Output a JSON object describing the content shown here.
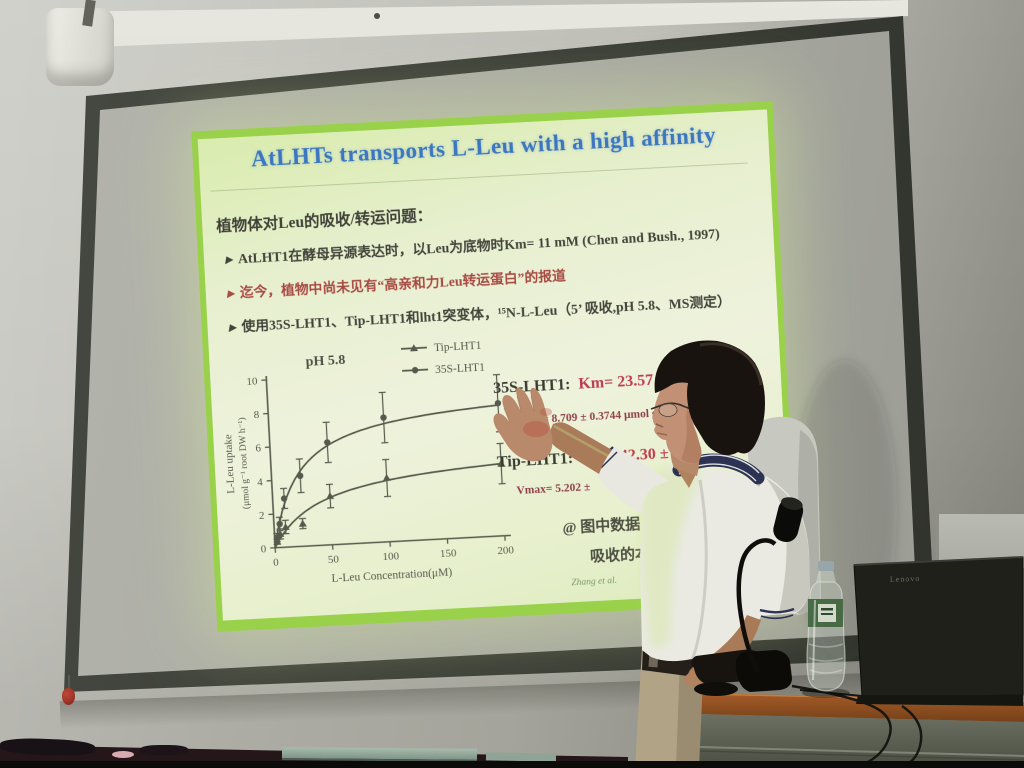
{
  "room": {
    "laptop_brand": "Lenovo"
  },
  "slide": {
    "title": "AtLHTs transports L-Leu with a high affinity",
    "intro": "植物体对Leu的吸收/转运问题：",
    "bullet_marker": "▸",
    "bullets": [
      {
        "text": "AtLHT1在酵母异源表达时，以Leu为底物时Km= 11 mM (Chen and Bush., 1997)",
        "tone": "dark"
      },
      {
        "text": "迄今，植物中尚未见有“高亲和力Leu转运蛋白”的报道",
        "tone": "red"
      },
      {
        "text": "使用35S-LHT1、Tip-LHT1和lht1突变体，¹⁵N-L-Leu（5’ 吸收,pH 5.8、MS测定）",
        "tone": "dark"
      }
    ],
    "results": {
      "r1_name": "35S-LHT1:",
      "r1_km": "Km= 23.57 ±",
      "r1_vmax": "Vmax= 8.709 ± 0.3744 μmol g⁻¹ root DW h⁻¹",
      "r2_name": "Tip-LHT1:",
      "r2_km": "Km= 42.30 ± 1",
      "r2_vmax": "Vmax= 5.202 ±"
    },
    "note_line1": "@ 图中数据",
    "note_line2": "吸收的本",
    "citation": "Zhang et al."
  },
  "chart_data": {
    "type": "line",
    "title": "pH 5.8",
    "xlabel": "L-Leu Concentration(μM)",
    "ylabel": "L-Leu uptake",
    "ylabel_sub": "(μmol g⁻¹ root DW h⁻¹)",
    "xlim": [
      0,
      200
    ],
    "ylim": [
      0,
      10
    ],
    "xticks": [
      0,
      50,
      100,
      150,
      200
    ],
    "yticks": [
      0,
      2,
      4,
      6,
      8,
      10
    ],
    "grid": false,
    "legend_position": "top-right",
    "series": [
      {
        "name": "Tip-LHT1",
        "marker": "triangle",
        "x": [
          2,
          5,
          10,
          25,
          50,
          100,
          200
        ],
        "y": [
          0.35,
          0.8,
          1.2,
          1.35,
          2.9,
          3.8,
          4.3
        ],
        "err": [
          0.15,
          0.3,
          0.4,
          0.3,
          0.7,
          1.1,
          1.2
        ],
        "fit_vmax": 5.2,
        "fit_km": 42.3
      },
      {
        "name": "35S-LHT1",
        "marker": "circle",
        "x": [
          2,
          5,
          10,
          25,
          50,
          100,
          200
        ],
        "y": [
          0.6,
          1.4,
          2.9,
          4.2,
          6.1,
          7.4,
          7.9
        ],
        "err": [
          0.25,
          0.4,
          0.6,
          1.0,
          1.2,
          1.5,
          1.7
        ],
        "fit_vmax": 8.7,
        "fit_km": 23.57
      }
    ]
  },
  "palette": {
    "slide_border_green": "#99d14b",
    "slide_background": "#e9f0d4",
    "title_blue": "#3b77c0",
    "highlight_red": "#bf3b4e",
    "body_text": "#42443a",
    "chart_ink": "#565a4c",
    "screen_frame": "#3a3d35",
    "wall": "#b9b9b1",
    "desk_wood": "#a65c28"
  }
}
